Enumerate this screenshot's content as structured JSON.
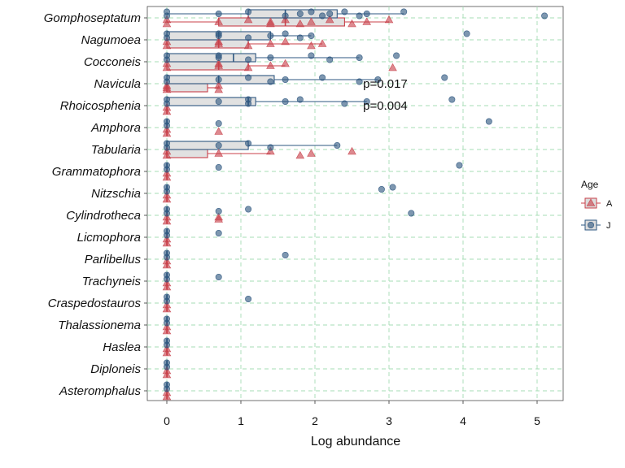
{
  "chart_data": {
    "type": "boxplot",
    "orientation": "horizontal",
    "title": "",
    "xlabel": "Log abundance",
    "ylabel": "",
    "xlim": [
      -0.25,
      5.35
    ],
    "xticks": [
      0,
      1,
      2,
      3,
      4,
      5
    ],
    "grid": true,
    "legend": {
      "title": "Age",
      "position": "right"
    },
    "categories": [
      "Gomphoseptatum",
      "Nagumoea",
      "Cocconeis",
      "Navicula",
      "Rhoicosphenia",
      "Amphora",
      "Tabularia",
      "Grammatophora",
      "Nitzschia",
      "Cylindrotheca",
      "Licmophora",
      "Parlibellus",
      "Trachyneis",
      "Craspedostauros",
      "Thalassionema",
      "Haslea",
      "Diploneis",
      "Asteromphalus"
    ],
    "series": [
      {
        "name": "A",
        "color": "#c8404a",
        "marker": "triangle",
        "boxes": {
          "Gomphoseptatum": {
            "q1": 0.7,
            "median": 1.6,
            "q3": 2.4,
            "whisker_low": 0,
            "whisker_high": 3.0
          },
          "Nagumoea": {
            "q1": 0,
            "median": 0.7,
            "q3": 1.1,
            "whisker_low": 0,
            "whisker_high": 2.1
          },
          "Cocconeis": {
            "q1": 0,
            "median": 0.7,
            "q3": 1.1,
            "whisker_low": 0,
            "whisker_high": 1.6
          },
          "Navicula": {
            "q1": 0,
            "median": 0,
            "q3": 0.55,
            "whisker_low": 0,
            "whisker_high": 0.7
          },
          "Rhoicosphenia": {
            "q1": 0,
            "median": 0,
            "q3": 0,
            "whisker_low": 0,
            "whisker_high": 0
          },
          "Amphora": {
            "q1": 0,
            "median": 0,
            "q3": 0,
            "whisker_low": 0,
            "whisker_high": 0
          },
          "Tabularia": {
            "q1": 0,
            "median": 0,
            "q3": 0.55,
            "whisker_low": 0,
            "whisker_high": 1.4
          },
          "Grammatophora": {
            "q1": 0,
            "median": 0,
            "q3": 0,
            "whisker_low": 0,
            "whisker_high": 0
          },
          "Nitzschia": {
            "q1": 0,
            "median": 0,
            "q3": 0,
            "whisker_low": 0,
            "whisker_high": 0
          },
          "Cylindrotheca": {
            "q1": 0,
            "median": 0,
            "q3": 0,
            "whisker_low": 0,
            "whisker_high": 0
          },
          "Licmophora": {
            "q1": 0,
            "median": 0,
            "q3": 0,
            "whisker_low": 0,
            "whisker_high": 0
          },
          "Parlibellus": {
            "q1": 0,
            "median": 0,
            "q3": 0,
            "whisker_low": 0,
            "whisker_high": 0
          },
          "Trachyneis": {
            "q1": 0,
            "median": 0,
            "q3": 0,
            "whisker_low": 0,
            "whisker_high": 0
          },
          "Craspedostauros": {
            "q1": 0,
            "median": 0,
            "q3": 0,
            "whisker_low": 0,
            "whisker_high": 0
          },
          "Thalassionema": {
            "q1": 0,
            "median": 0,
            "q3": 0,
            "whisker_low": 0,
            "whisker_high": 0
          },
          "Haslea": {
            "q1": 0,
            "median": 0,
            "q3": 0,
            "whisker_low": 0,
            "whisker_high": 0
          },
          "Diploneis": {
            "q1": 0,
            "median": 0,
            "q3": 0,
            "whisker_low": 0,
            "whisker_high": 0
          },
          "Asteromphalus": {
            "q1": 0,
            "median": 0,
            "q3": 0,
            "whisker_low": 0,
            "whisker_high": 0
          }
        },
        "points": {
          "Gomphoseptatum": [
            0,
            0,
            0.7,
            1.1,
            1.4,
            1.4,
            1.6,
            1.8,
            1.95,
            2.2,
            2.5,
            2.7,
            3.0
          ],
          "Nagumoea": [
            0,
            0,
            0.7,
            0.7,
            1.1,
            1.4,
            1.6,
            1.95,
            2.1
          ],
          "Cocconeis": [
            0,
            0,
            0.7,
            0.7,
            1.1,
            1.4,
            1.6,
            3.05
          ],
          "Navicula": [
            0,
            0,
            0,
            0.7,
            0.7
          ],
          "Rhoicosphenia": [
            0,
            0
          ],
          "Amphora": [
            0,
            0,
            0.7
          ],
          "Tabularia": [
            0,
            0,
            0.7,
            1.4,
            1.8,
            1.95,
            2.5
          ],
          "Grammatophora": [
            0,
            0
          ],
          "Nitzschia": [
            0,
            0
          ],
          "Cylindrotheca": [
            0,
            0,
            0.7,
            0.7
          ],
          "Licmophora": [
            0,
            0
          ],
          "Parlibellus": [
            0,
            0
          ],
          "Trachyneis": [
            0,
            0
          ],
          "Craspedostauros": [
            0,
            0
          ],
          "Thalassionema": [
            0,
            0
          ],
          "Haslea": [
            0,
            0
          ],
          "Diploneis": [
            0,
            0
          ],
          "Asteromphalus": [
            0,
            0
          ]
        }
      },
      {
        "name": "J",
        "color": "#2e5780",
        "marker": "circle",
        "boxes": {
          "Gomphoseptatum": {
            "q1": 1.1,
            "median": 1.6,
            "q3": 2.3,
            "whisker_low": 0,
            "whisker_high": 3.2
          },
          "Nagumoea": {
            "q1": 0,
            "median": 0.7,
            "q3": 1.4,
            "whisker_low": 0,
            "whisker_high": 1.95
          },
          "Cocconeis": {
            "q1": 0,
            "median": 0.9,
            "q3": 1.2,
            "whisker_low": 0,
            "whisker_high": 2.6
          },
          "Navicula": {
            "q1": 0,
            "median": 0.7,
            "q3": 1.45,
            "whisker_low": 0,
            "whisker_high": 2.85
          },
          "Rhoicosphenia": {
            "q1": 0,
            "median": 1.1,
            "q3": 1.2,
            "whisker_low": 0,
            "whisker_high": 2.7
          },
          "Amphora": {
            "q1": 0,
            "median": 0,
            "q3": 0,
            "whisker_low": 0,
            "whisker_high": 0
          },
          "Tabularia": {
            "q1": 0,
            "median": 0,
            "q3": 1.1,
            "whisker_low": 0,
            "whisker_high": 2.3
          },
          "Grammatophora": {
            "q1": 0,
            "median": 0,
            "q3": 0,
            "whisker_low": 0,
            "whisker_high": 0
          },
          "Nitzschia": {
            "q1": 0,
            "median": 0,
            "q3": 0,
            "whisker_low": 0,
            "whisker_high": 0
          },
          "Cylindrotheca": {
            "q1": 0,
            "median": 0,
            "q3": 0,
            "whisker_low": 0,
            "whisker_high": 0
          },
          "Licmophora": {
            "q1": 0,
            "median": 0,
            "q3": 0,
            "whisker_low": 0,
            "whisker_high": 0
          },
          "Parlibellus": {
            "q1": 0,
            "median": 0,
            "q3": 0,
            "whisker_low": 0,
            "whisker_high": 0
          },
          "Trachyneis": {
            "q1": 0,
            "median": 0,
            "q3": 0,
            "whisker_low": 0,
            "whisker_high": 0
          },
          "Craspedostauros": {
            "q1": 0,
            "median": 0,
            "q3": 0,
            "whisker_low": 0,
            "whisker_high": 0
          },
          "Thalassionema": {
            "q1": 0,
            "median": 0,
            "q3": 0,
            "whisker_low": 0,
            "whisker_high": 0
          },
          "Haslea": {
            "q1": 0,
            "median": 0,
            "q3": 0,
            "whisker_low": 0,
            "whisker_high": 0
          },
          "Diploneis": {
            "q1": 0,
            "median": 0,
            "q3": 0,
            "whisker_low": 0,
            "whisker_high": 0
          },
          "Asteromphalus": {
            "q1": 0,
            "median": 0,
            "q3": 0,
            "whisker_low": 0,
            "whisker_high": 0
          }
        },
        "points": {
          "Gomphoseptatum": [
            0,
            0,
            0.7,
            1.1,
            1.6,
            1.8,
            1.95,
            2.1,
            2.2,
            2.4,
            2.6,
            2.7,
            3.2,
            5.1
          ],
          "Nagumoea": [
            0,
            0,
            0.7,
            0.7,
            1.1,
            1.4,
            1.6,
            1.8,
            1.95,
            4.05
          ],
          "Cocconeis": [
            0,
            0,
            0.7,
            0.7,
            1.1,
            1.4,
            1.95,
            2.2,
            2.6,
            3.1
          ],
          "Navicula": [
            0,
            0,
            0.7,
            1.1,
            1.4,
            1.6,
            2.1,
            2.6,
            2.85,
            3.75
          ],
          "Rhoicosphenia": [
            0,
            0,
            0.7,
            1.1,
            1.1,
            1.6,
            1.8,
            2.4,
            2.7,
            3.85
          ],
          "Amphora": [
            0,
            0,
            0.7,
            4.35
          ],
          "Tabularia": [
            0,
            0,
            0.7,
            1.1,
            1.4,
            2.3
          ],
          "Grammatophora": [
            0,
            0,
            0.7,
            3.95
          ],
          "Nitzschia": [
            0,
            0,
            2.9,
            3.05
          ],
          "Cylindrotheca": [
            0,
            0,
            0.7,
            1.1,
            3.3
          ],
          "Licmophora": [
            0,
            0,
            0.7
          ],
          "Parlibellus": [
            0,
            0,
            1.6
          ],
          "Trachyneis": [
            0,
            0,
            0.7
          ],
          "Craspedostauros": [
            0,
            0,
            1.1
          ],
          "Thalassionema": [
            0,
            0
          ],
          "Haslea": [
            0,
            0
          ],
          "Diploneis": [
            0,
            0
          ],
          "Asteromphalus": [
            0,
            0
          ]
        }
      }
    ],
    "annotations": [
      {
        "text": "p=0.017",
        "category": "Navicula",
        "x": 2.65
      },
      {
        "text": "p=0.004",
        "category": "Rhoicosphenia",
        "x": 2.65
      }
    ],
    "colors": {
      "gridline": "#a6dcb4",
      "box_fill": "#dcdcdc"
    }
  }
}
